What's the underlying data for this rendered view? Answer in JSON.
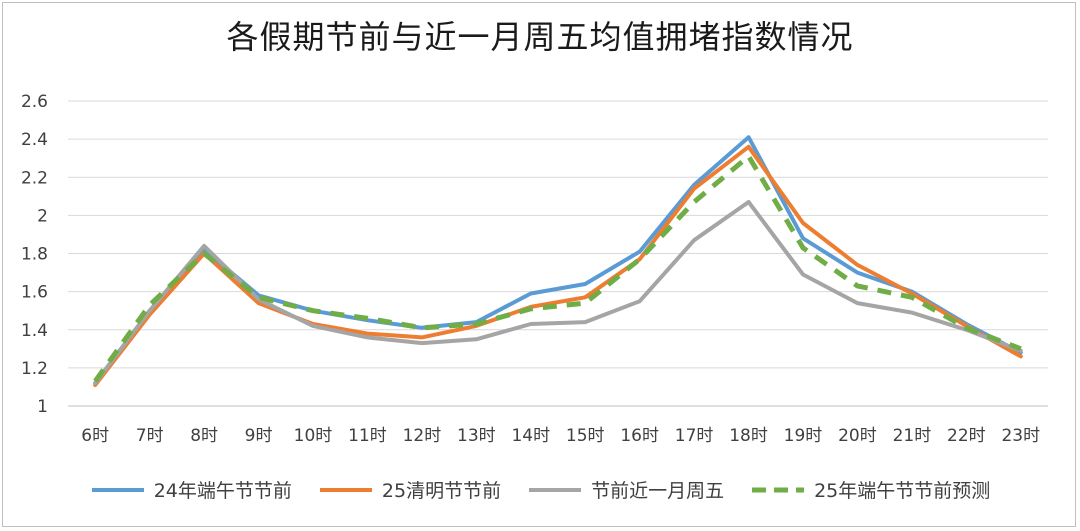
{
  "chart_data": {
    "type": "line",
    "title": "各假期节前与近一月周五均值拥堵指数情况",
    "xlabel": "",
    "ylabel": "",
    "categories": [
      "6时",
      "7时",
      "8时",
      "9时",
      "10时",
      "11时",
      "12时",
      "13时",
      "14时",
      "15时",
      "16时",
      "17时",
      "18时",
      "19时",
      "20时",
      "21时",
      "22时",
      "23时"
    ],
    "ylim": [
      1,
      2.6
    ],
    "yticks": [
      "1",
      "1.2",
      "1.4",
      "1.6",
      "1.8",
      "2",
      "2.2",
      "2.4",
      "2.6"
    ],
    "grid": true,
    "legend_position": "bottom",
    "series": [
      {
        "name": "24年端午节节前",
        "color": "#5b9bd5",
        "dashed": false,
        "values": [
          1.12,
          1.5,
          1.82,
          1.58,
          1.5,
          1.45,
          1.41,
          1.44,
          1.59,
          1.64,
          1.81,
          2.16,
          2.41,
          1.88,
          1.7,
          1.6,
          1.43,
          1.28
        ]
      },
      {
        "name": "25清明节节前",
        "color": "#ed7d31",
        "dashed": false,
        "values": [
          1.11,
          1.48,
          1.8,
          1.54,
          1.43,
          1.38,
          1.36,
          1.42,
          1.52,
          1.57,
          1.77,
          2.14,
          2.36,
          1.96,
          1.74,
          1.59,
          1.42,
          1.26
        ]
      },
      {
        "name": "节前近一月周五",
        "color": "#a5a5a5",
        "dashed": false,
        "values": [
          1.12,
          1.5,
          1.84,
          1.56,
          1.42,
          1.36,
          1.33,
          1.35,
          1.43,
          1.44,
          1.55,
          1.87,
          2.07,
          1.69,
          1.54,
          1.49,
          1.4,
          1.29
        ]
      },
      {
        "name": "25年端午节节前预测",
        "color": "#70ad47",
        "dashed": true,
        "values": [
          1.13,
          1.53,
          1.8,
          1.57,
          1.5,
          1.46,
          1.41,
          1.43,
          1.51,
          1.54,
          1.77,
          2.07,
          2.31,
          1.83,
          1.63,
          1.57,
          1.41,
          1.3
        ]
      }
    ]
  }
}
